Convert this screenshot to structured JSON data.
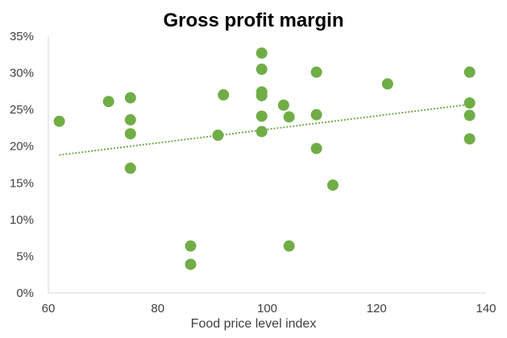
{
  "chart_data": {
    "type": "scatter",
    "title": "Gross profit margin",
    "xlabel": "Food price level index",
    "ylabel": "",
    "xlim": [
      60,
      140
    ],
    "ylim": [
      0,
      0.35
    ],
    "x_ticks": [
      {
        "value": 60,
        "label": "60"
      },
      {
        "value": 80,
        "label": "80"
      },
      {
        "value": 100,
        "label": "100"
      },
      {
        "value": 120,
        "label": "120"
      },
      {
        "value": 140,
        "label": "140"
      }
    ],
    "y_ticks": [
      {
        "value": 0,
        "label": "0%"
      },
      {
        "value": 0.05,
        "label": "5%"
      },
      {
        "value": 0.1,
        "label": "10%"
      },
      {
        "value": 0.15,
        "label": "15%"
      },
      {
        "value": 0.2,
        "label": "20%"
      },
      {
        "value": 0.25,
        "label": "25%"
      },
      {
        "value": 0.3,
        "label": "30%"
      },
      {
        "value": 0.35,
        "label": "35%"
      }
    ],
    "grid": false,
    "marker_color": "#70AD47",
    "axis_color": "#D9D9D9",
    "points": [
      {
        "x": 62,
        "y": 0.234
      },
      {
        "x": 71,
        "y": 0.261
      },
      {
        "x": 75,
        "y": 0.266
      },
      {
        "x": 75,
        "y": 0.236
      },
      {
        "x": 75,
        "y": 0.217
      },
      {
        "x": 75,
        "y": 0.17
      },
      {
        "x": 86,
        "y": 0.064
      },
      {
        "x": 86,
        "y": 0.039
      },
      {
        "x": 91,
        "y": 0.215
      },
      {
        "x": 92,
        "y": 0.27
      },
      {
        "x": 99,
        "y": 0.327
      },
      {
        "x": 99,
        "y": 0.305
      },
      {
        "x": 99,
        "y": 0.274
      },
      {
        "x": 99,
        "y": 0.269
      },
      {
        "x": 99,
        "y": 0.241
      },
      {
        "x": 99,
        "y": 0.22
      },
      {
        "x": 103,
        "y": 0.256
      },
      {
        "x": 104,
        "y": 0.24
      },
      {
        "x": 104,
        "y": 0.064
      },
      {
        "x": 109,
        "y": 0.301
      },
      {
        "x": 109,
        "y": 0.243
      },
      {
        "x": 109,
        "y": 0.197
      },
      {
        "x": 112,
        "y": 0.147
      },
      {
        "x": 122,
        "y": 0.285
      },
      {
        "x": 137,
        "y": 0.301
      },
      {
        "x": 137,
        "y": 0.259
      },
      {
        "x": 137,
        "y": 0.242
      },
      {
        "x": 137,
        "y": 0.21
      }
    ],
    "trendline": {
      "style": "dotted",
      "color": "#70AD47",
      "x": [
        62,
        137
      ],
      "y": [
        0.188,
        0.257
      ]
    }
  }
}
